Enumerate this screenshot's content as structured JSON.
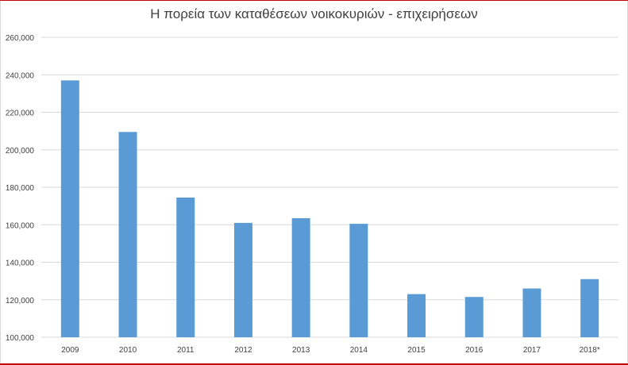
{
  "chart_data": {
    "type": "bar",
    "title": "Η πορεία των καταθέσεων νοικοκυριών - επιχειρήσεων",
    "xlabel": "",
    "ylabel": "",
    "categories": [
      "2009",
      "2010",
      "2011",
      "2012",
      "2013",
      "2014",
      "2015",
      "2016",
      "2017",
      "2018*"
    ],
    "values": [
      237000,
      209500,
      174500,
      161000,
      163500,
      160500,
      123000,
      121500,
      126000,
      131000
    ],
    "ylim": [
      100000,
      260000
    ],
    "yticks": [
      "100,000",
      "120,000",
      "140,000",
      "160,000",
      "180,000",
      "200,000",
      "220,000",
      "240,000",
      "260,000"
    ],
    "ytick_values": [
      100000,
      120000,
      140000,
      160000,
      180000,
      200000,
      220000,
      240000,
      260000
    ],
    "bar_color": "#5b9bd5",
    "grid": true,
    "legend": "none"
  }
}
